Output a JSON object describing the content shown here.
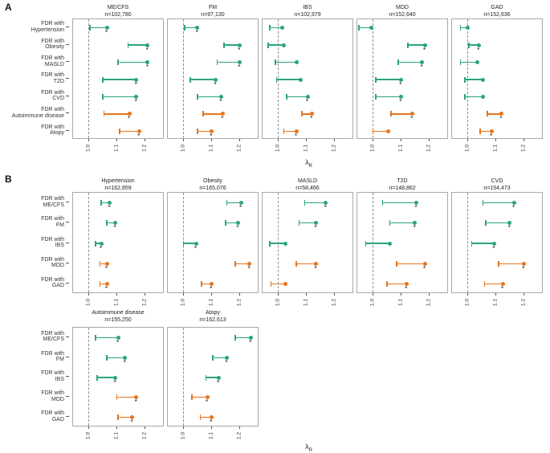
{
  "figure": {
    "panel_a_letter": "A",
    "panel_b_letter": "B",
    "x_axis_label": "λ",
    "x_axis_label_sub": "R"
  },
  "colors": {
    "green": "#2aa47e",
    "orange": "#e8741c",
    "sig": "#111111",
    "reference_line": "#8f8f8f",
    "box_border": "#a9a9a9"
  },
  "chart_data": {
    "type": "scatter",
    "subtype": "dumbbell-lollipop forest plot, small multiples; whisker cap at 'from', filled dot at 'to', asterisk = significant",
    "x_axis": {
      "label": "λR",
      "ticks": [
        "1.0",
        "1.1",
        "1.2"
      ],
      "tick_values": [
        1.0,
        1.1,
        1.2
      ],
      "range": [
        0.945,
        1.265
      ],
      "reference_line": 1.0,
      "grid": false
    },
    "sig_marker": "*",
    "panels": [
      {
        "letter": "A",
        "row_labels": [
          [
            "FDR with",
            "Hypertension"
          ],
          [
            "FDR with",
            "Obesity"
          ],
          [
            "FDR with",
            "MASLD"
          ],
          [
            "FDR with",
            "T2D"
          ],
          [
            "FDR with",
            "CVD"
          ],
          [
            "FDR with",
            "Autoimmune disease"
          ],
          [
            "FDR with",
            "Atopy"
          ]
        ],
        "subplots": [
          {
            "title": "ME/CFS",
            "n": "n=102,780",
            "points": [
              {
                "from": 1.005,
                "to": 1.065,
                "color": "green",
                "sig": true
              },
              {
                "from": 1.14,
                "to": 1.21,
                "color": "green",
                "sig": true
              },
              {
                "from": 1.105,
                "to": 1.21,
                "color": "green",
                "sig": true
              },
              {
                "from": 1.05,
                "to": 1.17,
                "color": "green",
                "sig": true
              },
              {
                "from": 1.05,
                "to": 1.17,
                "color": "green",
                "sig": true
              },
              {
                "from": 1.055,
                "to": 1.145,
                "color": "orange",
                "sig": true
              },
              {
                "from": 1.11,
                "to": 1.18,
                "color": "orange",
                "sig": true
              }
            ]
          },
          {
            "title": "FM",
            "n": "n=97,130",
            "points": [
              {
                "from": 1.005,
                "to": 1.05,
                "color": "green",
                "sig": true
              },
              {
                "from": 1.145,
                "to": 1.2,
                "color": "green",
                "sig": true
              },
              {
                "from": 1.12,
                "to": 1.2,
                "color": "green",
                "sig": true
              },
              {
                "from": 1.025,
                "to": 1.115,
                "color": "green",
                "sig": true
              },
              {
                "from": 1.05,
                "to": 1.135,
                "color": "green",
                "sig": true
              },
              {
                "from": 1.07,
                "to": 1.14,
                "color": "orange",
                "sig": true
              },
              {
                "from": 1.05,
                "to": 1.1,
                "color": "orange",
                "sig": true
              }
            ]
          },
          {
            "title": "IBS",
            "n": "n=102,979",
            "points": [
              {
                "from": 0.97,
                "to": 1.015,
                "color": "green",
                "sig": false
              },
              {
                "from": 0.965,
                "to": 1.02,
                "color": "green",
                "sig": false
              },
              {
                "from": 0.99,
                "to": 1.065,
                "color": "green",
                "sig": false
              },
              {
                "from": 0.995,
                "to": 1.08,
                "color": "green",
                "sig": false
              },
              {
                "from": 1.03,
                "to": 1.105,
                "color": "green",
                "sig": true
              },
              {
                "from": 1.085,
                "to": 1.12,
                "color": "orange",
                "sig": true
              },
              {
                "from": 1.02,
                "to": 1.065,
                "color": "orange",
                "sig": true
              }
            ]
          },
          {
            "title": "MDD",
            "n": "n=152,640",
            "points": [
              {
                "from": 0.95,
                "to": 0.995,
                "color": "green",
                "sig": false
              },
              {
                "from": 1.125,
                "to": 1.185,
                "color": "green",
                "sig": true
              },
              {
                "from": 1.09,
                "to": 1.175,
                "color": "green",
                "sig": true
              },
              {
                "from": 1.01,
                "to": 1.1,
                "color": "green",
                "sig": true
              },
              {
                "from": 1.01,
                "to": 1.1,
                "color": "green",
                "sig": true
              },
              {
                "from": 1.065,
                "to": 1.14,
                "color": "orange",
                "sig": true
              },
              {
                "from": 1.0,
                "to": 1.055,
                "color": "orange",
                "sig": false
              }
            ]
          },
          {
            "title": "GAD",
            "n": "n=152,636",
            "points": [
              {
                "from": 0.975,
                "to": 1.0,
                "color": "green",
                "sig": false
              },
              {
                "from": 1.005,
                "to": 1.04,
                "color": "green",
                "sig": true
              },
              {
                "from": 0.975,
                "to": 1.035,
                "color": "green",
                "sig": false
              },
              {
                "from": 0.99,
                "to": 1.055,
                "color": "green",
                "sig": false
              },
              {
                "from": 0.99,
                "to": 1.055,
                "color": "green",
                "sig": false
              },
              {
                "from": 1.07,
                "to": 1.12,
                "color": "orange",
                "sig": true
              },
              {
                "from": 1.045,
                "to": 1.085,
                "color": "orange",
                "sig": true
              }
            ]
          }
        ]
      },
      {
        "letter": "B",
        "row_labels": [
          [
            "FDR with",
            "ME/CFS"
          ],
          [
            "FDR with",
            "FM"
          ],
          [
            "FDR with",
            "IBS"
          ],
          [
            "FDR with",
            "MDD"
          ],
          [
            "FDR with",
            "GAD"
          ]
        ],
        "subplots": [
          {
            "title": "Hypertension",
            "n": "n=162,859",
            "points": [
              {
                "from": 1.045,
                "to": 1.075,
                "color": "green",
                "sig": true
              },
              {
                "from": 1.065,
                "to": 1.095,
                "color": "green",
                "sig": true
              },
              {
                "from": 1.025,
                "to": 1.045,
                "color": "green",
                "sig": true
              },
              {
                "from": 1.04,
                "to": 1.065,
                "color": "orange",
                "sig": true
              },
              {
                "from": 1.04,
                "to": 1.065,
                "color": "orange",
                "sig": true
              }
            ]
          },
          {
            "title": "Obesity",
            "n": "n=165,076",
            "points": [
              {
                "from": 1.155,
                "to": 1.205,
                "color": "green",
                "sig": true
              },
              {
                "from": 1.15,
                "to": 1.195,
                "color": "green",
                "sig": true
              },
              {
                "from": 1.0,
                "to": 1.045,
                "color": "green",
                "sig": true
              },
              {
                "from": 1.185,
                "to": 1.235,
                "color": "orange",
                "sig": true
              },
              {
                "from": 1.065,
                "to": 1.1,
                "color": "orange",
                "sig": true
              }
            ]
          },
          {
            "title": "MASLD",
            "n": "n=58,466",
            "points": [
              {
                "from": 1.095,
                "to": 1.17,
                "color": "green",
                "sig": true
              },
              {
                "from": 1.075,
                "to": 1.135,
                "color": "green",
                "sig": true
              },
              {
                "from": 0.97,
                "to": 1.025,
                "color": "green",
                "sig": false
              },
              {
                "from": 1.065,
                "to": 1.135,
                "color": "orange",
                "sig": true
              },
              {
                "from": 0.975,
                "to": 1.025,
                "color": "orange",
                "sig": false
              }
            ]
          },
          {
            "title": "T2D",
            "n": "n=148,862",
            "points": [
              {
                "from": 1.035,
                "to": 1.155,
                "color": "green",
                "sig": true
              },
              {
                "from": 1.06,
                "to": 1.15,
                "color": "green",
                "sig": true
              },
              {
                "from": 0.975,
                "to": 1.06,
                "color": "green",
                "sig": false
              },
              {
                "from": 1.085,
                "to": 1.185,
                "color": "orange",
                "sig": true
              },
              {
                "from": 1.05,
                "to": 1.12,
                "color": "orange",
                "sig": true
              }
            ]
          },
          {
            "title": "CVD",
            "n": "n=154,473",
            "points": [
              {
                "from": 1.055,
                "to": 1.165,
                "color": "green",
                "sig": true
              },
              {
                "from": 1.065,
                "to": 1.15,
                "color": "green",
                "sig": true
              },
              {
                "from": 1.015,
                "to": 1.095,
                "color": "green",
                "sig": true
              },
              {
                "from": 1.11,
                "to": 1.2,
                "color": "orange",
                "sig": true
              },
              {
                "from": 1.06,
                "to": 1.125,
                "color": "orange",
                "sig": true
              }
            ]
          },
          {
            "title": "Autoimmune disease",
            "n": "n=155,250",
            "points": [
              {
                "from": 1.025,
                "to": 1.105,
                "color": "green",
                "sig": true
              },
              {
                "from": 1.065,
                "to": 1.13,
                "color": "green",
                "sig": true
              },
              {
                "from": 1.03,
                "to": 1.095,
                "color": "green",
                "sig": true
              },
              {
                "from": 1.1,
                "to": 1.17,
                "color": "orange",
                "sig": true
              },
              {
                "from": 1.105,
                "to": 1.155,
                "color": "orange",
                "sig": true
              }
            ]
          },
          {
            "title": "Atopy",
            "n": "n=162,613",
            "points": [
              {
                "from": 1.185,
                "to": 1.24,
                "color": "green",
                "sig": true
              },
              {
                "from": 1.105,
                "to": 1.155,
                "color": "green",
                "sig": true
              },
              {
                "from": 1.08,
                "to": 1.125,
                "color": "green",
                "sig": true
              },
              {
                "from": 1.03,
                "to": 1.085,
                "color": "orange",
                "sig": true
              },
              {
                "from": 1.06,
                "to": 1.1,
                "color": "orange",
                "sig": true
              }
            ]
          }
        ]
      }
    ]
  }
}
